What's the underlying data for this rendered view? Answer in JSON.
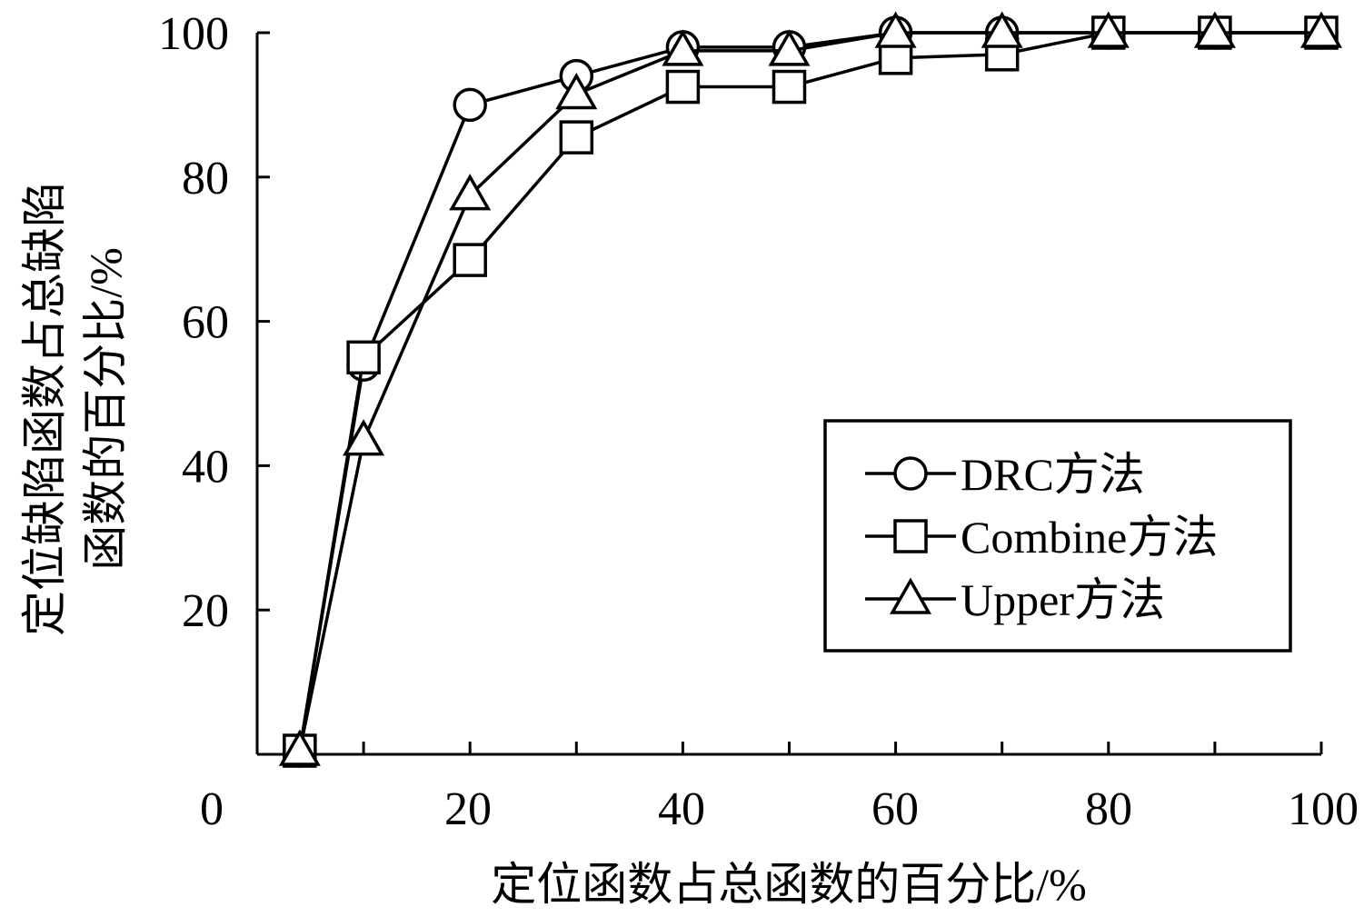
{
  "chart_data": {
    "type": "line",
    "title": "",
    "xlabel": "定位函数占总函数的百分比/%",
    "ylabel_lines": [
      "定位缺陷函数占总缺陷",
      "函数的百分比/%"
    ],
    "xlim": [
      0,
      100
    ],
    "ylim": [
      0,
      100
    ],
    "x_ticks": [
      "0",
      "20",
      "40",
      "60",
      "80",
      "100"
    ],
    "y_ticks": [
      "20",
      "40",
      "60",
      "80",
      "100"
    ],
    "grid": false,
    "legend_position": "right",
    "x": [
      4,
      10,
      20,
      30,
      40,
      50,
      60,
      70,
      80,
      90,
      100
    ],
    "series": [
      {
        "name": "DRC方法",
        "marker": "circle",
        "values": [
          0.5,
          54,
          90,
          94,
          98,
          98,
          100,
          100,
          100,
          100,
          100
        ]
      },
      {
        "name": "Combine方法",
        "marker": "square",
        "values": [
          0.5,
          55,
          68.5,
          85.5,
          92.5,
          92.5,
          96.5,
          97,
          100,
          100,
          100
        ]
      },
      {
        "name": "Upper方法",
        "marker": "triangle",
        "values": [
          0.5,
          43.5,
          77.5,
          91.5,
          97.5,
          97.5,
          100,
          100,
          100,
          100,
          100
        ]
      }
    ]
  }
}
